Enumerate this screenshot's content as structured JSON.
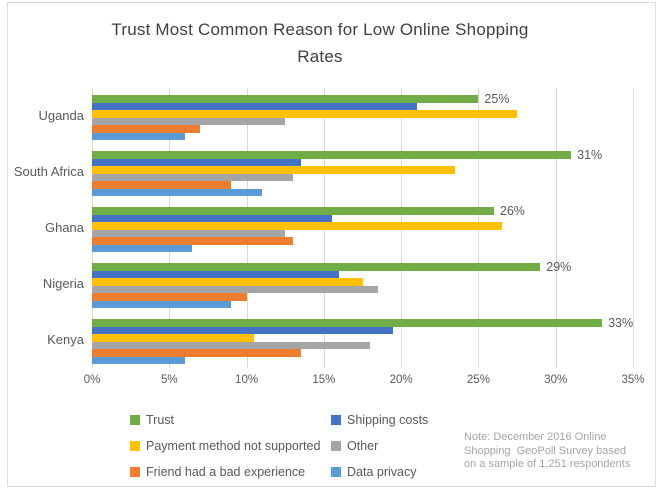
{
  "title": {
    "line1": "Trust Most Common Reason for Low Online Shopping",
    "line2": "Rates"
  },
  "chart_data": {
    "type": "bar",
    "orientation": "horizontal",
    "title": "Trust Most Common Reason for Low Online Shopping Rates",
    "categories": [
      "Uganda",
      "South Africa",
      "Ghana",
      "Nigeria",
      "Kenya"
    ],
    "series": [
      {
        "name": "Trust",
        "color": "#70AD47",
        "values": [
          25,
          31,
          26,
          29,
          33
        ],
        "data_labels": [
          "25%",
          "31%",
          "26%",
          "29%",
          "33%"
        ]
      },
      {
        "name": "Shipping costs",
        "color": "#4472C4",
        "values": [
          21,
          13.5,
          15.5,
          16,
          19.5
        ]
      },
      {
        "name": "Payment method not supported",
        "color": "#FFC000",
        "values": [
          27.5,
          23.5,
          26.5,
          17.5,
          10.5
        ]
      },
      {
        "name": "Other",
        "color": "#A5A5A5",
        "values": [
          12.5,
          13,
          12.5,
          18.5,
          18
        ]
      },
      {
        "name": "Friend had a bad experience",
        "color": "#ED7D31",
        "values": [
          7,
          9,
          13,
          10,
          13.5
        ]
      },
      {
        "name": "Data privacy",
        "color": "#5B9BD5",
        "values": [
          6,
          11,
          6.5,
          9,
          6
        ]
      }
    ],
    "xlabel": "",
    "ylabel": "",
    "xlim": [
      0,
      35
    ],
    "x_ticks": [
      "0%",
      "5%",
      "10%",
      "15%",
      "20%",
      "25%",
      "30%",
      "35%"
    ],
    "grid": "vertical",
    "legend_position": "bottom-left",
    "legend_pairs": [
      [
        0,
        1
      ],
      [
        2,
        3
      ],
      [
        4,
        5
      ]
    ]
  },
  "note": {
    "lines": [
      "Note: December 2016 Online",
      "Shopping  GeoPoll Survey based",
      "on a sample of 1,251 respondents"
    ]
  },
  "colors": {
    "title_text": "#404040",
    "axis_text": "#595959",
    "gridline": "#D9D9D9",
    "note_text": "#A6A6A6"
  }
}
